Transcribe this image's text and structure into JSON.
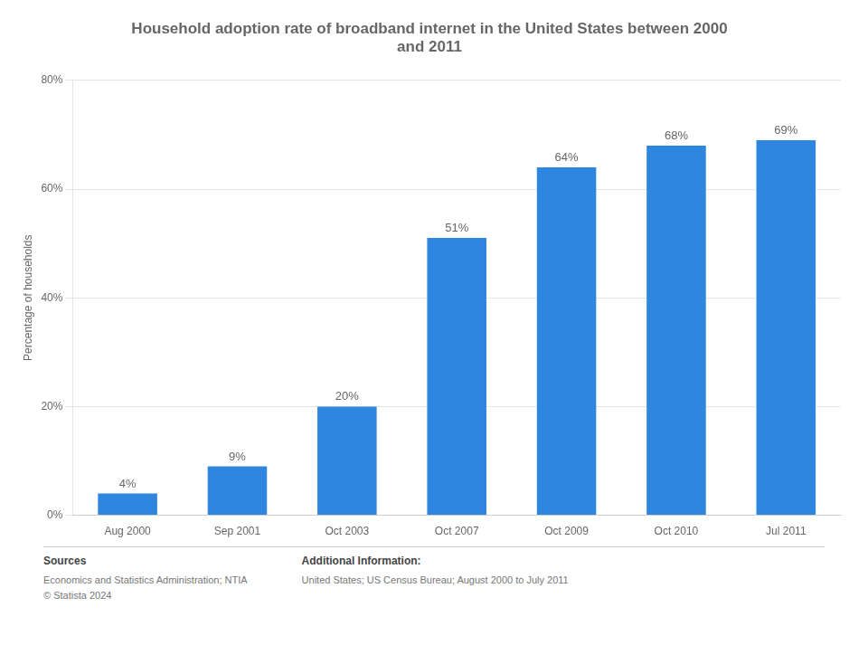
{
  "chart_data": {
    "type": "bar",
    "title": "Household adoption rate of broadband internet in the United States between 2000\nand 2011",
    "categories": [
      "Aug 2000",
      "Sep 2001",
      "Oct 2003",
      "Oct 2007",
      "Oct 2009",
      "Oct 2010",
      "Jul 2011"
    ],
    "values": [
      4,
      9,
      20,
      51,
      64,
      68,
      69
    ],
    "value_labels": [
      "4%",
      "9%",
      "20%",
      "51%",
      "64%",
      "68%",
      "69%"
    ],
    "data_labels": true,
    "color": "#2E86DE",
    "ylabel": "Percentage of households",
    "ylim": [
      0,
      80
    ],
    "yticks": [
      {
        "value": 0,
        "label": "0%"
      },
      {
        "value": 20,
        "label": "20%"
      },
      {
        "value": 40,
        "label": "40%"
      },
      {
        "value": 60,
        "label": "60%"
      },
      {
        "value": 80,
        "label": "80%"
      }
    ],
    "grid": true,
    "annotations": [
      "Sources",
      "Economics and Statistics Administration; NTIA\n© Statista 2024",
      "Additional Information:",
      "United States; US Census Bureau; August 2000 to July 2011"
    ]
  }
}
